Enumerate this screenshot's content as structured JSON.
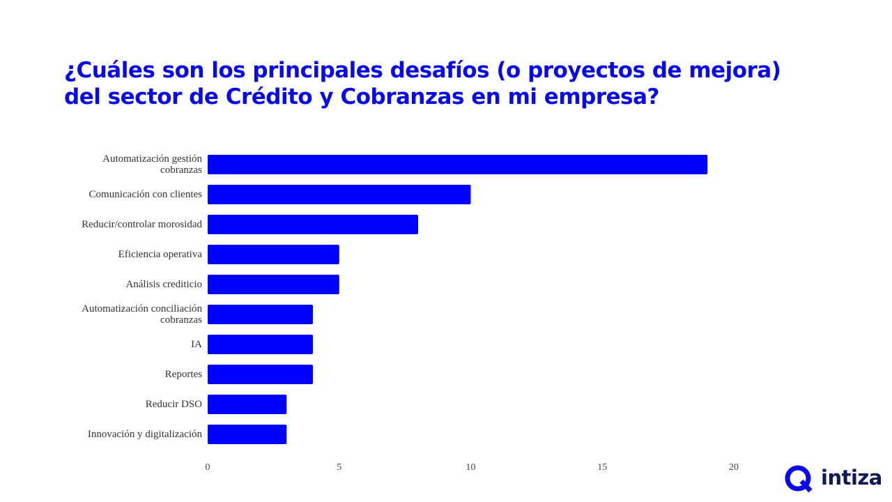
{
  "chart_data": {
    "type": "barh",
    "title": "¿Cuáles son los principales desafíos (o proyectos de mejora) del sector de Crédito y Cobranzas en mi empresa?",
    "categories": [
      "Automatización gestión cobranzas",
      "Comunicación con clientes",
      "Reducir/controlar morosidad",
      "Eficiencia operativa",
      "Análisis crediticio",
      "Automatización conciliación cobranzas",
      "IA",
      "Reportes",
      "Reducir DSO",
      "Innovación y digitalización"
    ],
    "values": [
      19,
      10,
      8,
      5,
      5,
      4,
      4,
      4,
      3,
      3
    ],
    "color": "#0000ff",
    "xlim": [
      0,
      20
    ],
    "xticks": [
      0,
      5,
      10,
      15,
      20
    ],
    "grid": false
  },
  "logo": "intiza"
}
